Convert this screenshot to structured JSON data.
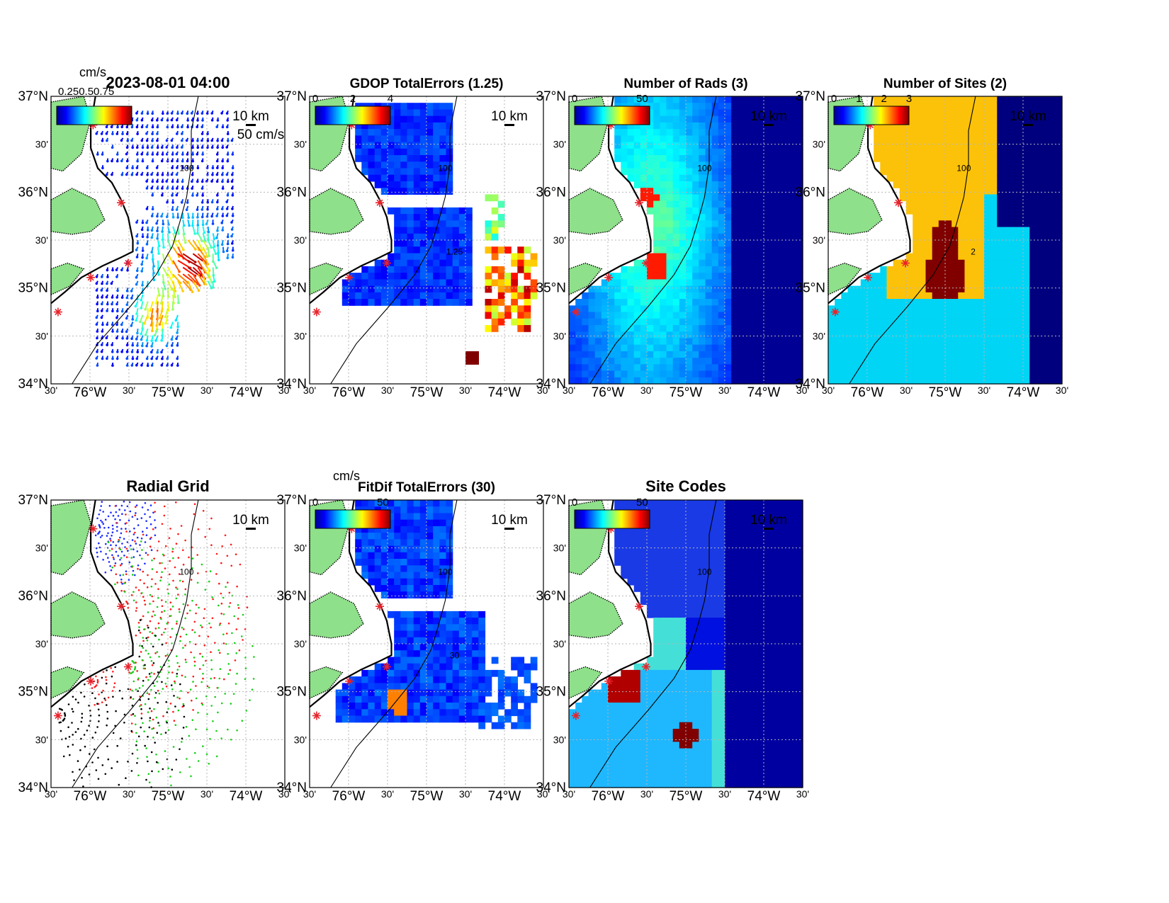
{
  "figure": {
    "timestamp": "2023-08-01 04:00",
    "lat_labels": [
      "37°N",
      "30'",
      "36°N",
      "30'",
      "35°N",
      "30'",
      "34°N"
    ],
    "lon_labels": [
      "30'",
      "76°W",
      "30'",
      "75°W",
      "30'",
      "74°W",
      "30'"
    ],
    "scale_bar_label": "10 km",
    "contour_label": "100",
    "colors": {
      "land": "#8fe08a",
      "coast": "#000000",
      "grid": "#b5b5b5",
      "site_marker": "#e8232a",
      "sites_level1": "#00d5f5",
      "sites_level2": "#fcc20a",
      "sites_level3": "#800000",
      "sites_none": "#00007f"
    }
  },
  "panels": [
    {
      "id": "currents",
      "title": "",
      "colorbar_unit": "cm/s",
      "colorbar_ticks": [],
      "vector_scale_label": "50 cm/s",
      "overlap_text": "0.250.50.75"
    },
    {
      "id": "gdop",
      "title": "GDOP TotalErrors (1.25)",
      "colorbar_unit": "",
      "colorbar_ticks": [
        "0",
        "2",
        "4"
      ],
      "contour_label": "1.25"
    },
    {
      "id": "nrads",
      "title": "Number of Rads (3)",
      "colorbar_unit": "",
      "colorbar_ticks": [
        "0",
        "50"
      ]
    },
    {
      "id": "nsites",
      "title": "Number of Sites (2)",
      "colorbar_unit": "",
      "colorbar_ticks": [
        "0",
        "1",
        "2",
        "3"
      ],
      "contour_label": "2"
    },
    {
      "id": "radial",
      "title": "Radial Grid",
      "colorbar_unit": "",
      "colorbar_ticks": []
    },
    {
      "id": "fitdif",
      "title": "FitDif TotalErrors (30)",
      "colorbar_unit": "cm/s",
      "colorbar_ticks": [
        "0",
        "50"
      ],
      "contour_label": "30"
    },
    {
      "id": "sitecodes",
      "title": "Site Codes",
      "colorbar_unit": "",
      "colorbar_ticks": [
        "0",
        "50"
      ]
    }
  ]
}
